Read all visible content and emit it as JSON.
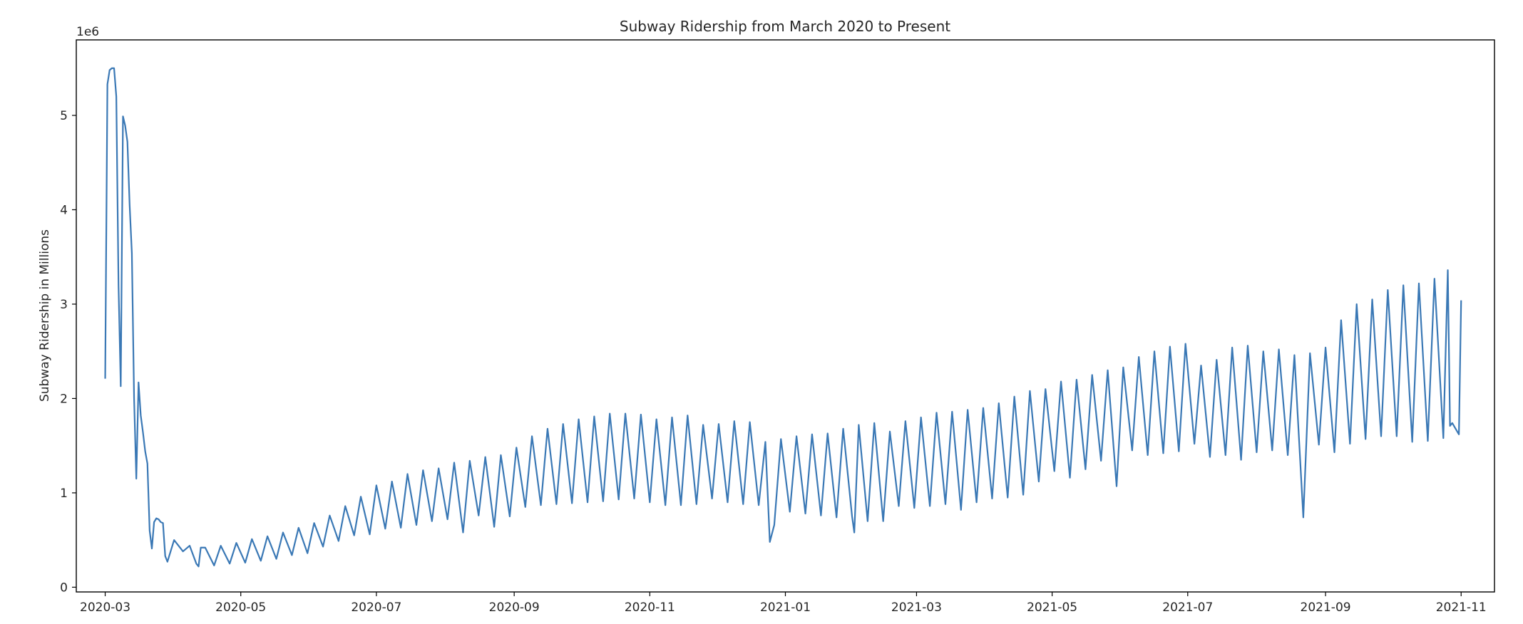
{
  "chart_data": {
    "type": "line",
    "title": "Subway Ridership from March 2020 to Present",
    "xlabel": "",
    "ylabel": "Subway Ridership in Millions",
    "y_offset_label": "1e6",
    "ylim": [
      -50000,
      5800000
    ],
    "xlim": [
      "2020-02-17",
      "2021-11-16"
    ],
    "grid": false,
    "line_color": "#3a78b5",
    "x_ticks": [
      {
        "date": "2020-03-01",
        "label": "2020-03"
      },
      {
        "date": "2020-05-01",
        "label": "2020-05"
      },
      {
        "date": "2020-07-01",
        "label": "2020-07"
      },
      {
        "date": "2020-09-01",
        "label": "2020-09"
      },
      {
        "date": "2020-11-01",
        "label": "2020-11"
      },
      {
        "date": "2021-01-01",
        "label": "2021-01"
      },
      {
        "date": "2021-03-01",
        "label": "2021-03"
      },
      {
        "date": "2021-05-01",
        "label": "2021-05"
      },
      {
        "date": "2021-07-01",
        "label": "2021-07"
      },
      {
        "date": "2021-09-01",
        "label": "2021-09"
      },
      {
        "date": "2021-11-01",
        "label": "2021-11"
      }
    ],
    "y_ticks": [
      {
        "value": 0,
        "label": "0"
      },
      {
        "value": 1000000,
        "label": "1"
      },
      {
        "value": 2000000,
        "label": "2"
      },
      {
        "value": 3000000,
        "label": "3"
      },
      {
        "value": 4000000,
        "label": "4"
      },
      {
        "value": 5000000,
        "label": "5"
      }
    ],
    "series": [
      {
        "dates": [
          "2020-03-01",
          "2020-03-02",
          "2020-03-03",
          "2020-03-04",
          "2020-03-05",
          "2020-03-06",
          "2020-03-07",
          "2020-03-08",
          "2020-03-09",
          "2020-03-10",
          "2020-03-11",
          "2020-03-12",
          "2020-03-13",
          "2020-03-14",
          "2020-03-15",
          "2020-03-16",
          "2020-03-17",
          "2020-03-18",
          "2020-03-19",
          "2020-03-20",
          "2020-03-21",
          "2020-03-22",
          "2020-03-23",
          "2020-03-24",
          "2020-03-25",
          "2020-03-26",
          "2020-03-27",
          "2020-03-28",
          "2020-03-29",
          "2020-04-05",
          "2020-04-11",
          "2020-04-12",
          "2020-04-13",
          "2020-04-19",
          "2020-04-26",
          "2020-05-03",
          "2020-05-10",
          "2020-05-17",
          "2020-05-24",
          "2020-05-31",
          "2020-06-07",
          "2020-06-14",
          "2020-06-21",
          "2020-06-28",
          "2020-07-05",
          "2020-07-12",
          "2020-07-19",
          "2020-07-26",
          "2020-08-02",
          "2020-08-09",
          "2020-08-16",
          "2020-08-23",
          "2020-08-30",
          "2020-09-06",
          "2020-09-13",
          "2020-09-20",
          "2020-09-27",
          "2020-10-04",
          "2020-10-11",
          "2020-10-18",
          "2020-10-25",
          "2020-11-01",
          "2020-11-08",
          "2020-11-15",
          "2020-11-22",
          "2020-11-29",
          "2020-12-06",
          "2020-12-13",
          "2020-12-20",
          "2020-12-25",
          "2020-12-27",
          "2021-01-03",
          "2021-01-10",
          "2021-01-17",
          "2021-01-24",
          "2021-01-31",
          "2021-02-01",
          "2021-02-07",
          "2021-02-14",
          "2021-02-21",
          "2021-02-28",
          "2021-03-07",
          "2021-03-14",
          "2021-03-21",
          "2021-03-28",
          "2021-04-04",
          "2021-04-11",
          "2021-04-18",
          "2021-04-25",
          "2021-05-02",
          "2021-05-09",
          "2021-05-16",
          "2021-05-23",
          "2021-05-30",
          "2021-06-06",
          "2021-06-13",
          "2021-06-20",
          "2021-06-27",
          "2021-07-04",
          "2021-07-11",
          "2021-07-18",
          "2021-07-25",
          "2021-08-01",
          "2021-08-08",
          "2021-08-15",
          "2021-08-22",
          "2021-08-29",
          "2021-09-05",
          "2021-09-12",
          "2021-09-19",
          "2021-09-26",
          "2021-10-03",
          "2021-10-10",
          "2021-10-17",
          "2021-10-24",
          "2021-10-27",
          "2021-10-28",
          "2021-10-31"
        ],
        "values": [
          2210000,
          5330000,
          5480000,
          5500000,
          5500000,
          5200000,
          3200000,
          2130000,
          4990000,
          4890000,
          4720000,
          4050000,
          3540000,
          2000000,
          1150000,
          2170000,
          1820000,
          1640000,
          1440000,
          1310000,
          600000,
          410000,
          690000,
          730000,
          720000,
          690000,
          680000,
          330000,
          270000,
          380000,
          250000,
          220000,
          420000,
          230000,
          250000,
          260000,
          280000,
          300000,
          340000,
          360000,
          430000,
          490000,
          550000,
          560000,
          620000,
          630000,
          660000,
          700000,
          720000,
          580000,
          760000,
          640000,
          750000,
          850000,
          870000,
          880000,
          890000,
          900000,
          910000,
          930000,
          940000,
          900000,
          870000,
          870000,
          880000,
          940000,
          900000,
          880000,
          870000,
          480000,
          660000,
          800000,
          780000,
          760000,
          740000,
          750000,
          580000,
          700000,
          700000,
          860000,
          840000,
          860000,
          880000,
          820000,
          900000,
          940000,
          950000,
          980000,
          1120000,
          1230000,
          1160000,
          1250000,
          1340000,
          1070000,
          1450000,
          1400000,
          1420000,
          1440000,
          1520000,
          1380000,
          1400000,
          1350000,
          1430000,
          1450000,
          1400000,
          740000,
          1510000,
          1430000,
          1520000,
          1570000,
          1600000,
          1600000,
          1540000,
          1550000,
          1580000,
          1710000,
          1740000,
          1620000
        ]
      },
      {
        "dates": [
          "2020-04-01",
          "2020-04-08",
          "2020-04-15",
          "2020-04-22",
          "2020-04-29",
          "2020-05-06",
          "2020-05-13",
          "2020-05-20",
          "2020-05-27",
          "2020-06-03",
          "2020-06-10",
          "2020-06-17",
          "2020-06-24",
          "2020-07-01",
          "2020-07-08",
          "2020-07-15",
          "2020-07-22",
          "2020-07-29",
          "2020-08-05",
          "2020-08-12",
          "2020-08-19",
          "2020-08-26",
          "2020-09-02",
          "2020-09-09",
          "2020-09-16",
          "2020-09-23",
          "2020-09-30",
          "2020-10-07",
          "2020-10-14",
          "2020-10-21",
          "2020-10-28",
          "2020-11-04",
          "2020-11-11",
          "2020-11-18",
          "2020-11-25",
          "2020-12-02",
          "2020-12-09",
          "2020-12-16",
          "2020-12-23",
          "2020-12-30",
          "2021-01-06",
          "2021-01-13",
          "2021-01-20",
          "2021-01-27",
          "2021-02-03",
          "2021-02-10",
          "2021-02-17",
          "2021-02-24",
          "2021-03-03",
          "2021-03-10",
          "2021-03-17",
          "2021-03-24",
          "2021-03-31",
          "2021-04-07",
          "2021-04-14",
          "2021-04-21",
          "2021-04-28",
          "2021-05-05",
          "2021-05-12",
          "2021-05-19",
          "2021-05-26",
          "2021-06-02",
          "2021-06-09",
          "2021-06-16",
          "2021-06-23",
          "2021-06-30",
          "2021-07-07",
          "2021-07-14",
          "2021-07-21",
          "2021-07-28",
          "2021-08-04",
          "2021-08-11",
          "2021-08-18",
          "2021-08-25",
          "2021-09-01",
          "2021-09-08",
          "2021-09-15",
          "2021-09-22",
          "2021-09-29",
          "2021-10-06",
          "2021-10-13",
          "2021-10-20",
          "2021-10-26",
          "2021-11-01"
        ],
        "values": [
          500000,
          440000,
          420000,
          440000,
          470000,
          510000,
          540000,
          580000,
          630000,
          680000,
          760000,
          860000,
          960000,
          1080000,
          1120000,
          1200000,
          1240000,
          1260000,
          1320000,
          1340000,
          1380000,
          1400000,
          1480000,
          1600000,
          1680000,
          1730000,
          1780000,
          1810000,
          1840000,
          1840000,
          1830000,
          1780000,
          1800000,
          1820000,
          1720000,
          1730000,
          1760000,
          1750000,
          1540000,
          1570000,
          1600000,
          1620000,
          1630000,
          1680000,
          1720000,
          1740000,
          1650000,
          1760000,
          1800000,
          1850000,
          1860000,
          1880000,
          1900000,
          1950000,
          2020000,
          2080000,
          2100000,
          2180000,
          2200000,
          2250000,
          2300000,
          2330000,
          2440000,
          2500000,
          2550000,
          2580000,
          2350000,
          2410000,
          2540000,
          2560000,
          2500000,
          2520000,
          2460000,
          2480000,
          2540000,
          2830000,
          3000000,
          3050000,
          3150000,
          3200000,
          3220000,
          3270000,
          3360000,
          3040000
        ]
      }
    ]
  }
}
